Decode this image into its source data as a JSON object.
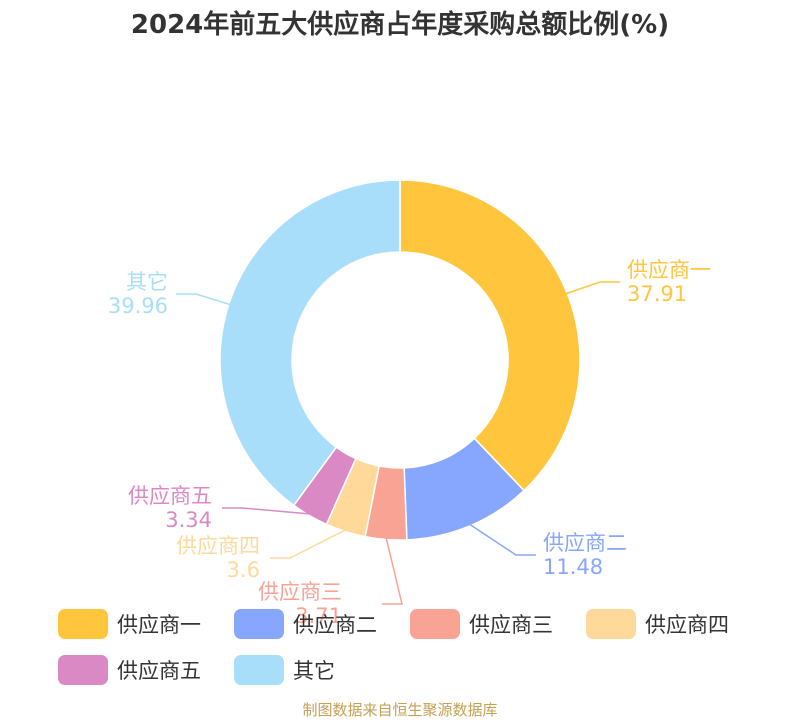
{
  "chart_data": {
    "type": "pie",
    "title": "2024年前五大供应商占年度采购总额比例(%)",
    "categories": [
      "供应商一",
      "供应商二",
      "供应商三",
      "供应商四",
      "供应商五",
      "其它"
    ],
    "values": [
      37.91,
      11.48,
      3.71,
      3.6,
      3.34,
      39.96
    ],
    "colors": [
      "#ffc53d",
      "#87a7ff",
      "#f9a395",
      "#ffd99a",
      "#db89c4",
      "#a8defa"
    ],
    "legend_position": "bottom",
    "donut": true
  },
  "source": "制图数据来自恒生聚源数据库"
}
